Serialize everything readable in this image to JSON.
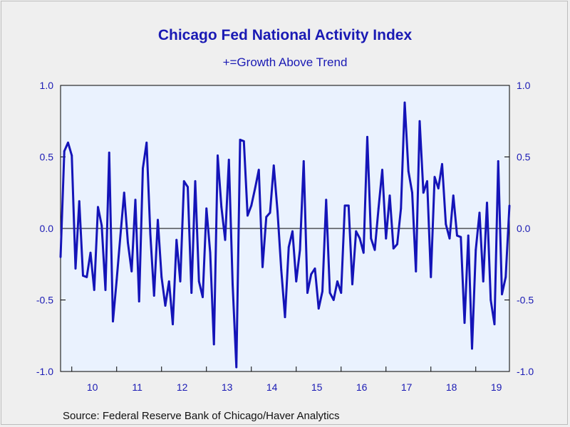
{
  "chart_data": {
    "type": "line",
    "title": "Chicago Fed National Activity Index",
    "subtitle": "+=Growth Above Trend",
    "source": "Source:  Federal Reserve Bank of Chicago/Haver Analytics",
    "ylim": [
      -1.0,
      1.0
    ],
    "y_ticks": [
      {
        "value": 1.0,
        "label": "1.0"
      },
      {
        "value": 0.5,
        "label": "0.5"
      },
      {
        "value": 0.0,
        "label": "0.0"
      },
      {
        "value": -0.5,
        "label": "-0.5"
      },
      {
        "value": -1.0,
        "label": "-1.0"
      }
    ],
    "x_year_labels": [
      "10",
      "11",
      "12",
      "13",
      "14",
      "15",
      "16",
      "17",
      "18",
      "19"
    ],
    "x_start": "2009-10",
    "grid": false,
    "zero_line": true,
    "colors": {
      "line": "#1414b8",
      "text": "#1a1ab4",
      "plot_bg": "#eaf2fe",
      "page_bg": "#efefef"
    },
    "series": [
      {
        "values": [
          -0.2,
          0.54,
          0.6,
          0.51,
          -0.28,
          0.19,
          -0.33,
          -0.34,
          -0.17,
          -0.43,
          0.15,
          0.02,
          -0.43,
          0.53,
          -0.65,
          -0.36,
          -0.05,
          0.25,
          -0.1,
          -0.3,
          0.2,
          -0.51,
          0.42,
          0.6,
          -0.04,
          -0.47,
          0.06,
          -0.34,
          -0.54,
          -0.37,
          -0.67,
          -0.08,
          -0.37,
          0.33,
          0.29,
          -0.45,
          0.33,
          -0.37,
          -0.48,
          0.14,
          -0.17,
          -0.81,
          0.51,
          0.15,
          -0.08,
          0.48,
          -0.39,
          -0.97,
          0.62,
          0.61,
          0.09,
          0.16,
          0.28,
          0.41,
          -0.27,
          0.08,
          0.11,
          0.44,
          0.12,
          -0.29,
          -0.62,
          -0.13,
          -0.02,
          -0.37,
          -0.15,
          0.47,
          -0.45,
          -0.32,
          -0.28,
          -0.56,
          -0.44,
          0.2,
          -0.45,
          -0.5,
          -0.37,
          -0.45,
          0.16,
          0.16,
          -0.39,
          -0.02,
          -0.07,
          -0.17,
          0.64,
          -0.07,
          -0.15,
          0.14,
          0.41,
          -0.07,
          0.23,
          -0.14,
          -0.11,
          0.14,
          0.88,
          0.4,
          0.25,
          -0.3,
          0.75,
          0.25,
          0.33,
          -0.34,
          0.36,
          0.28,
          0.45,
          0.03,
          -0.07,
          0.23,
          -0.05,
          -0.06,
          -0.66,
          -0.05,
          -0.84,
          -0.15,
          0.11,
          -0.37,
          0.18,
          -0.5,
          -0.67,
          0.47,
          -0.46,
          -0.34,
          0.16
        ]
      }
    ]
  }
}
